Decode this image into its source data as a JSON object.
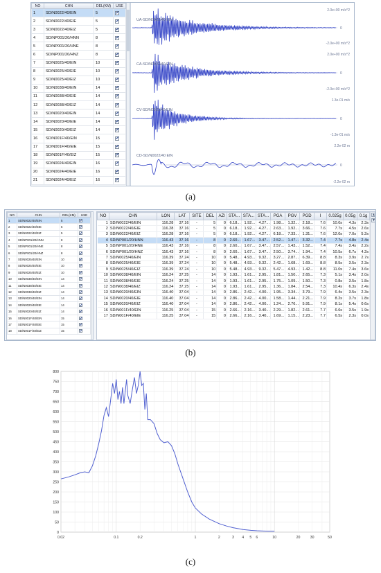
{
  "captions": {
    "a": "(a)",
    "b": "(b)",
    "c": "(c)"
  },
  "panel_a": {
    "list_headers": [
      "NO",
      "CHN",
      "DEL(KM)",
      "USE"
    ],
    "rows": [
      {
        "no": "1",
        "chn": "SD/N0022/40/EIN",
        "del": "5",
        "use": "✔"
      },
      {
        "no": "2",
        "chn": "SD/N0022/40/EIE",
        "del": "5",
        "use": "✔"
      },
      {
        "no": "3",
        "chn": "SD/N0022/40/EIZ",
        "del": "5",
        "use": "✔"
      },
      {
        "no": "4",
        "chn": "SD/NP001/20/HNN",
        "del": "8",
        "use": "✔"
      },
      {
        "no": "5",
        "chn": "SD/NP001/20/HNE",
        "del": "8",
        "use": "✔"
      },
      {
        "no": "6",
        "chn": "SD/NP001/20/HNZ",
        "del": "8",
        "use": "✔"
      },
      {
        "no": "7",
        "chn": "SD/N0025/40/EIN",
        "del": "10",
        "use": "✔"
      },
      {
        "no": "8",
        "chn": "SD/N0025/40/EIE",
        "del": "10",
        "use": "✔"
      },
      {
        "no": "9",
        "chn": "SD/N0025/40/EIZ",
        "del": "10",
        "use": "✔"
      },
      {
        "no": "10",
        "chn": "SD/N0038/40/EIN",
        "del": "14",
        "use": "✔"
      },
      {
        "no": "11",
        "chn": "SD/N0038/40/EIE",
        "del": "14",
        "use": "✔"
      },
      {
        "no": "12",
        "chn": "SD/N0038/40/EIZ",
        "del": "14",
        "use": "✔"
      },
      {
        "no": "13",
        "chn": "SD/N0020/40/EIN",
        "del": "14",
        "use": "✔"
      },
      {
        "no": "14",
        "chn": "SD/N0020/40/EIE",
        "del": "14",
        "use": "✔"
      },
      {
        "no": "15",
        "chn": "SD/N0020/40/EIZ",
        "del": "14",
        "use": "✔"
      },
      {
        "no": "16",
        "chn": "SD/N001F/40/EIN",
        "del": "15",
        "use": "✔"
      },
      {
        "no": "17",
        "chn": "SD/N001F/40/EIE",
        "del": "15",
        "use": "✔"
      },
      {
        "no": "18",
        "chn": "SD/N001F/40/EIZ",
        "del": "15",
        "use": "✔"
      },
      {
        "no": "19",
        "chn": "SD/N0024/40/EIN",
        "del": "16",
        "use": "✔"
      },
      {
        "no": "20",
        "chn": "SD/N0024/40/EIE",
        "del": "16",
        "use": "✔"
      },
      {
        "no": "21",
        "chn": "SD/N0024/40/EIZ",
        "del": "16",
        "use": "✔"
      }
    ],
    "traces": [
      {
        "label": "UA-SD/N0022/40 EIN",
        "scale_top": "2.0e+00 m/s^2",
        "scale_bottom": "-2.0e+00 m/s^2"
      },
      {
        "label": "CA-SD/N0022/40 EIN",
        "scale_top": "2.0e+00 m/s^2",
        "scale_bottom": "-2.0e+00 m/s^2"
      },
      {
        "label": "CV-SD/N0022/40 EIN",
        "scale_top": "1.3e-01 m/s",
        "scale_bottom": "-1.3e-01 m/s"
      },
      {
        "label": "CD-SD/N0022/40 EIN",
        "scale_top": "2.2e-02 m",
        "scale_bottom": "-2.2e-02 m"
      }
    ],
    "zero_label": "0"
  },
  "panel_b": {
    "list_headers": [
      "NO",
      "CHN",
      "DEL(KM)",
      "USE"
    ],
    "list_rows": [
      {
        "no": "1",
        "chn": "SD/N0022/40/EIN",
        "del": "5",
        "use": "✔"
      },
      {
        "no": "2",
        "chn": "SD/N0022/40/EIE",
        "del": "5",
        "use": "✔"
      },
      {
        "no": "3",
        "chn": "SD/N0022/40/EIZ",
        "del": "5",
        "use": "✔"
      },
      {
        "no": "4",
        "chn": "SD/NP001/20/HNN",
        "del": "8",
        "use": "✔"
      },
      {
        "no": "5",
        "chn": "SD/NP001/20/HNE",
        "del": "8",
        "use": "✔"
      },
      {
        "no": "6",
        "chn": "SD/NP001/20/HNZ",
        "del": "8",
        "use": "✔"
      },
      {
        "no": "7",
        "chn": "SD/N0025/40/EIN",
        "del": "10",
        "use": "✔"
      },
      {
        "no": "8",
        "chn": "SD/N0025/40/EIE",
        "del": "10",
        "use": "✔"
      },
      {
        "no": "9",
        "chn": "SD/N0025/40/EIZ",
        "del": "10",
        "use": "✔"
      },
      {
        "no": "10",
        "chn": "SD/N0038/40/EIN",
        "del": "14",
        "use": "✔"
      },
      {
        "no": "11",
        "chn": "SD/N0038/40/EIE",
        "del": "14",
        "use": "✔"
      },
      {
        "no": "12",
        "chn": "SD/N0038/40/EIZ",
        "del": "14",
        "use": "✔"
      },
      {
        "no": "13",
        "chn": "SD/N0020/40/EIN",
        "del": "14",
        "use": "✔"
      },
      {
        "no": "14",
        "chn": "SD/N0020/40/EIE",
        "del": "14",
        "use": "✔"
      },
      {
        "no": "15",
        "chn": "SD/N0020/40/EIZ",
        "del": "14",
        "use": "✔"
      },
      {
        "no": "16",
        "chn": "SD/N001F/40/EIN",
        "del": "15",
        "use": "✔"
      },
      {
        "no": "17",
        "chn": "SD/N001F/40/EIE",
        "del": "15",
        "use": "✔"
      },
      {
        "no": "18",
        "chn": "SD/N001F/40/EIZ",
        "del": "15",
        "use": "✔"
      }
    ],
    "table_headers": [
      "NO",
      "CHN",
      "LON",
      "LAT",
      "SITE",
      "DEL",
      "AZI",
      "STA...",
      "STA...",
      "STA...",
      "PGA",
      "PGV",
      "PGD",
      "I",
      "0.025g",
      "0.05g",
      "0.1g"
    ],
    "table_rows": [
      [
        "1",
        "SD/N0022/40/EIN",
        "116.28",
        "37.16",
        "-",
        "5",
        "0",
        "6.18...",
        "1.92...",
        "4.27...",
        "1.98...",
        "1.32...",
        "2.18...",
        "7.6",
        "10.0s",
        "4.3s",
        "2.3s"
      ],
      [
        "2",
        "SD/N0022/40/EIE",
        "116.28",
        "37.16",
        "-",
        "5",
        "0",
        "6.18...",
        "1.92...",
        "4.27...",
        "2.63...",
        "1.92...",
        "3.66...",
        "7.6",
        "7.7s",
        "4.5s",
        "2.6s"
      ],
      [
        "3",
        "SD/N0022/40/EIZ",
        "116.28",
        "37.16",
        "-",
        "5",
        "0",
        "6.18...",
        "1.92...",
        "4.27...",
        "6.18...",
        "7.33...",
        "1.31...",
        "7.6",
        "12.0s",
        "7.0s",
        "5.2s"
      ],
      [
        "4",
        "SD/NP001/20/HNN",
        "116.43",
        "37.16",
        "-",
        "8",
        "0",
        "2.60...",
        "1.67...",
        "3.47...",
        "2.52...",
        "1.47...",
        "3.32...",
        "7.4",
        "7.7s",
        "4.8s",
        "2.4s"
      ],
      [
        "5",
        "SD/NP001/20/HNE",
        "116.43",
        "37.16",
        "-",
        "8",
        "0",
        "2.60...",
        "1.67...",
        "3.47...",
        "2.57...",
        "1.43...",
        "1.52...",
        "7.4",
        "7.4s",
        "3.4s",
        "2.2s"
      ],
      [
        "6",
        "SD/NP001/20/HNZ",
        "116.43",
        "37.16",
        "-",
        "8",
        "0",
        "2.60...",
        "1.67...",
        "3.47...",
        "2.50...",
        "3.74...",
        "1.94...",
        "7.4",
        "10.5s",
        "6.7s",
        "4.2s"
      ],
      [
        "7",
        "SD/N0025/40/EIN",
        "116.39",
        "37.24",
        "-",
        "10",
        "0",
        "5.48...",
        "4.93...",
        "9.32...",
        "3.27...",
        "2.87...",
        "6.39...",
        "8.8",
        "8.3s",
        "3.9s",
        "2.7s"
      ],
      [
        "8",
        "SD/N0025/40/EIE",
        "116.39",
        "37.24",
        "-",
        "10",
        "0",
        "5.48...",
        "4.93...",
        "9.32...",
        "2.42...",
        "1.68...",
        "1.69...",
        "8.8",
        "8.5s",
        "3.5s",
        "2.3s"
      ],
      [
        "9",
        "SD/N0025/40/EIZ",
        "116.39",
        "37.24",
        "-",
        "10",
        "0",
        "5.48...",
        "4.93...",
        "9.32...",
        "5.47...",
        "4.93...",
        "1.42...",
        "8.8",
        "11.0s",
        "7.4s",
        "3.6s"
      ],
      [
        "10",
        "SD/N0038/40/EIN",
        "116.24",
        "37.25",
        "-",
        "14",
        "0",
        "1.93...",
        "1.61...",
        "2.95...",
        "1.81...",
        "1.50...",
        "2.65...",
        "7.3",
        "5.1s",
        "3.4s",
        "2.0s"
      ],
      [
        "11",
        "SD/N0038/40/EIE",
        "116.24",
        "37.25",
        "-",
        "14",
        "0",
        "1.93...",
        "1.61...",
        "2.95...",
        "1.75...",
        "1.09...",
        "1.50...",
        "7.3",
        "0.8s",
        "3.5s",
        "1.8s"
      ],
      [
        "12",
        "SD/N0038/40/EIZ",
        "116.24",
        "37.25",
        "-",
        "14",
        "0",
        "1.93...",
        "1.61...",
        "2.95...",
        "1.36...",
        "1.84...",
        "2.54...",
        "7.3",
        "10.4s",
        "6.3s",
        "2.4s"
      ],
      [
        "13",
        "SD/N0020/40/EIN",
        "116.40",
        "37.04",
        "-",
        "14",
        "0",
        "2.86...",
        "2.42...",
        "4.00...",
        "1.95...",
        "3.34...",
        "3.79...",
        "7.9",
        "6.4s",
        "3.5s",
        "2.3s"
      ],
      [
        "14",
        "SD/N0020/40/EIE",
        "116.40",
        "37.04",
        "-",
        "14",
        "0",
        "2.86...",
        "2.42...",
        "4.00...",
        "1.58...",
        "1.44...",
        "2.21...",
        "7.9",
        "8.2s",
        "3.7s",
        "1.8s"
      ],
      [
        "15",
        "SD/N0020/40/EIZ",
        "116.40",
        "37.04",
        "-",
        "14",
        "0",
        "2.86...",
        "2.42...",
        "4.00...",
        "1.24...",
        "2.76...",
        "5.91...",
        "7.9",
        "8.1s",
        "5.4s",
        "0.6s"
      ],
      [
        "16",
        "SD/N001F/40/EIN",
        "116.25",
        "37.04",
        "-",
        "15",
        "0",
        "2.66...",
        "2.16...",
        "3.40...",
        "2.29...",
        "1.82...",
        "2.61...",
        "7.7",
        "6.6s",
        "3.5s",
        "1.9s"
      ],
      [
        "17",
        "SD/N001F/40/EIE",
        "116.25",
        "37.04",
        "-",
        "15",
        "0",
        "2.66...",
        "2.16...",
        "3.40...",
        "1.69...",
        "1.15...",
        "2.23...",
        "7.7",
        "6.5s",
        "2.3s",
        "0.0s"
      ]
    ],
    "selected_row": "4",
    "scroll_up": "▲",
    "scroll_down": "▼"
  },
  "chart_data": {
    "type": "line",
    "x_scale": "log",
    "xlim": [
      0.02,
      50
    ],
    "ylim": [
      0,
      800
    ],
    "yticks": [
      0,
      50,
      100,
      150,
      200,
      250,
      300,
      350,
      400,
      450,
      500,
      550,
      600,
      650,
      700,
      750,
      800
    ],
    "ytick_labels": [
      "0",
      "50",
      "100",
      "150",
      "200",
      "250",
      "300",
      "350",
      "400",
      "450",
      "500",
      "550",
      "600",
      "650",
      "700",
      "750",
      "800"
    ],
    "xticks": [
      0.02,
      0.1,
      0.2,
      1,
      2,
      3,
      4,
      5,
      6,
      10,
      20,
      30,
      50
    ],
    "xtick_labels": [
      "0.02",
      "0.1",
      "0.2",
      "1",
      "2",
      "3",
      "4",
      "5",
      "6",
      "10",
      "20",
      "30",
      "50"
    ],
    "grid": true,
    "color": "#4f5fd0",
    "series": [
      {
        "x": [
          0.02,
          0.025,
          0.03,
          0.035,
          0.04,
          0.045,
          0.05,
          0.055,
          0.06,
          0.065,
          0.07,
          0.075,
          0.08,
          0.085,
          0.09,
          0.095,
          0.1,
          0.105,
          0.11,
          0.115,
          0.12,
          0.125,
          0.13,
          0.135,
          0.14,
          0.15,
          0.16,
          0.17,
          0.18,
          0.19,
          0.2,
          0.21,
          0.22,
          0.23,
          0.24,
          0.25,
          0.27,
          0.3,
          0.33,
          0.36,
          0.4,
          0.45,
          0.5,
          0.55,
          0.6,
          0.7,
          0.8,
          0.9,
          1.0,
          1.2,
          1.5,
          2,
          2.5,
          3,
          4,
          5,
          6,
          8,
          10
        ],
        "y": [
          265,
          275,
          285,
          295,
          300,
          295,
          330,
          380,
          440,
          505,
          580,
          620,
          575,
          660,
          740,
          690,
          760,
          660,
          700,
          640,
          720,
          640,
          700,
          760,
          680,
          640,
          710,
          770,
          690,
          730,
          800,
          730,
          740,
          610,
          690,
          560,
          560,
          540,
          490,
          460,
          445,
          450,
          430,
          390,
          340,
          265,
          200,
          150,
          120,
          90,
          65,
          42,
          30,
          22,
          13,
          9,
          7,
          5,
          5
        ]
      }
    ]
  }
}
